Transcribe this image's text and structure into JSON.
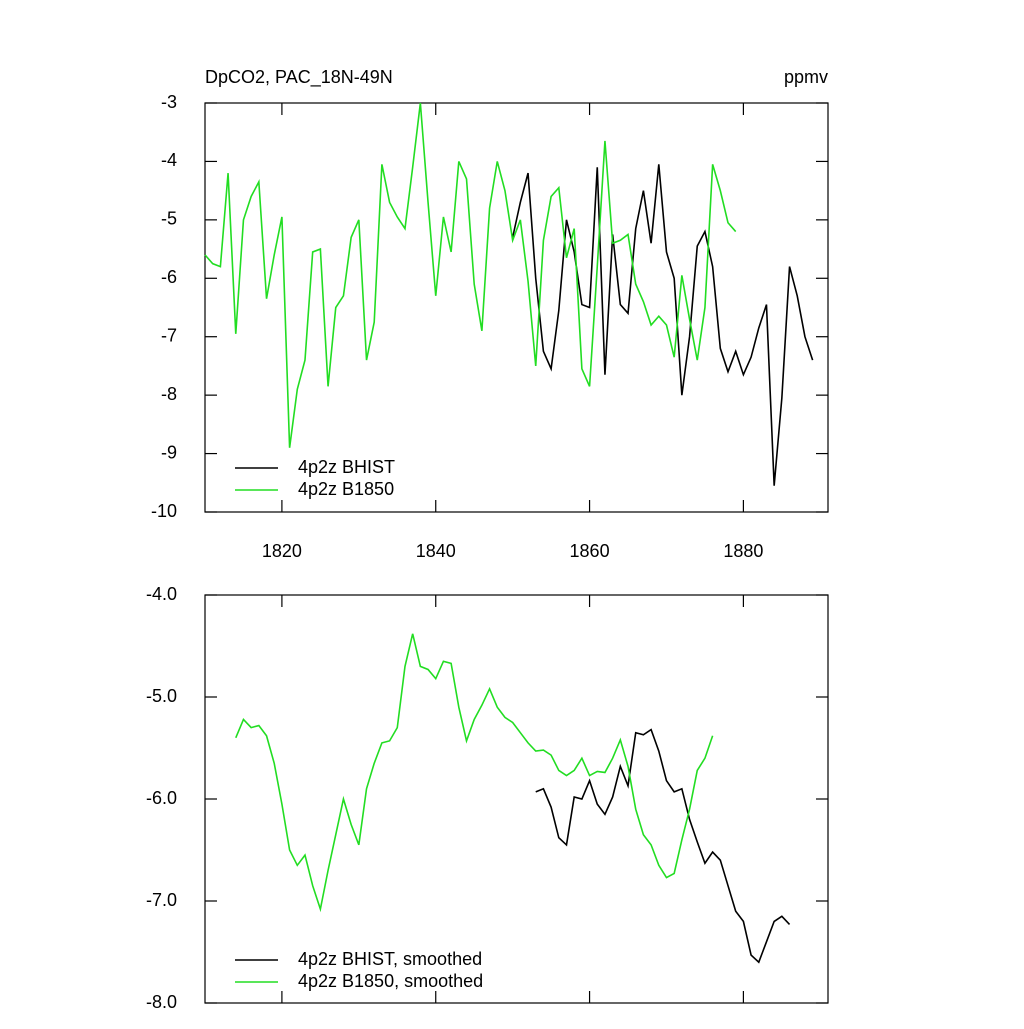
{
  "chart_data": [
    {
      "type": "line",
      "title": "DpCO2, PAC_18N-49N",
      "units": "ppmv",
      "xlim": [
        1810,
        1891
      ],
      "xticks": [
        1820,
        1840,
        1860,
        1880
      ],
      "ylim": [
        -10,
        -3
      ],
      "yticks": [
        -10,
        -9,
        -8,
        -7,
        -6,
        -5,
        -4,
        -3
      ],
      "grid": false,
      "legend": "lower left",
      "series": [
        {
          "name": "4p2z BHIST",
          "color": "#000000",
          "x": [
            1850,
            1851,
            1852,
            1853,
            1854,
            1855,
            1856,
            1857,
            1858,
            1859,
            1860,
            1861,
            1862,
            1863,
            1864,
            1865,
            1866,
            1867,
            1868,
            1869,
            1870,
            1871,
            1872,
            1873,
            1874,
            1875,
            1876,
            1877,
            1878,
            1879,
            1880,
            1881,
            1882,
            1883,
            1884,
            1885,
            1886,
            1887,
            1888,
            1889
          ],
          "values": [
            -5.3,
            -4.7,
            -4.2,
            -6.0,
            -7.25,
            -7.55,
            -6.55,
            -5.0,
            -5.55,
            -6.45,
            -6.5,
            -4.1,
            -7.65,
            -5.25,
            -6.45,
            -6.6,
            -5.15,
            -4.5,
            -5.4,
            -4.05,
            -5.55,
            -6.0,
            -8.0,
            -7.0,
            -5.45,
            -5.2,
            -5.8,
            -7.2,
            -7.6,
            -7.25,
            -7.65,
            -7.35,
            -6.85,
            -6.45,
            -9.55,
            -8.05,
            -5.8,
            -6.3,
            -7.0,
            -7.4
          ]
        },
        {
          "name": "4p2z B1850",
          "color": "#22dd22",
          "x": [
            1810,
            1811,
            1812,
            1813,
            1814,
            1815,
            1816,
            1817,
            1818,
            1819,
            1820,
            1821,
            1822,
            1823,
            1824,
            1825,
            1826,
            1827,
            1828,
            1829,
            1830,
            1831,
            1832,
            1833,
            1834,
            1835,
            1836,
            1837,
            1838,
            1839,
            1840,
            1841,
            1842,
            1843,
            1844,
            1845,
            1846,
            1847,
            1848,
            1849,
            1850,
            1851,
            1852,
            1853,
            1854,
            1855,
            1856,
            1857,
            1858,
            1859,
            1860,
            1861,
            1862,
            1863,
            1864,
            1865,
            1866,
            1867,
            1868,
            1869,
            1870,
            1871,
            1872,
            1873,
            1874,
            1875,
            1876,
            1877,
            1878,
            1879
          ],
          "values": [
            -5.6,
            -5.75,
            -5.8,
            -4.2,
            -6.95,
            -5.0,
            -4.6,
            -4.35,
            -6.35,
            -5.6,
            -4.95,
            -8.9,
            -7.9,
            -7.4,
            -5.55,
            -5.5,
            -7.85,
            -6.5,
            -6.3,
            -5.3,
            -5.0,
            -7.4,
            -6.75,
            -4.05,
            -4.7,
            -4.95,
            -5.15,
            -4.1,
            -3.0,
            -4.7,
            -6.3,
            -4.95,
            -5.55,
            -4.0,
            -4.3,
            -6.1,
            -6.9,
            -4.8,
            -4.0,
            -4.5,
            -5.35,
            -5.0,
            -6.05,
            -7.5,
            -5.35,
            -4.6,
            -4.45,
            -5.65,
            -5.15,
            -7.55,
            -7.85,
            -5.8,
            -3.65,
            -5.4,
            -5.35,
            -5.25,
            -6.1,
            -6.4,
            -6.8,
            -6.65,
            -6.8,
            -7.35,
            -5.95,
            -6.7,
            -7.4,
            -6.5,
            -4.05,
            -4.5,
            -5.05,
            -5.2
          ]
        }
      ]
    },
    {
      "type": "line",
      "xlim": [
        1810,
        1891
      ],
      "xticks": [
        1820,
        1840,
        1860,
        1880
      ],
      "ylim": [
        -8,
        -4
      ],
      "yticks": [
        {
          "value": -8,
          "label": "-8.0"
        },
        {
          "value": -7,
          "label": "-7.0"
        },
        {
          "value": -6,
          "label": "-6.0"
        },
        {
          "value": -5,
          "label": "-5.0"
        },
        {
          "value": -4,
          "label": "-4.0"
        }
      ],
      "grid": false,
      "legend": "lower left",
      "series": [
        {
          "name": "4p2z BHIST, smoothed",
          "color": "#000000",
          "x": [
            1853,
            1854,
            1855,
            1856,
            1857,
            1858,
            1859,
            1860,
            1861,
            1862,
            1863,
            1864,
            1865,
            1866,
            1867,
            1868,
            1869,
            1870,
            1871,
            1872,
            1873,
            1874,
            1875,
            1876,
            1877,
            1878,
            1879,
            1880,
            1881,
            1882,
            1883,
            1884,
            1885,
            1886
          ],
          "values": [
            -5.93,
            -5.9,
            -6.08,
            -6.38,
            -6.45,
            -5.98,
            -6.0,
            -5.82,
            -6.05,
            -6.15,
            -5.98,
            -5.68,
            -5.87,
            -5.35,
            -5.37,
            -5.32,
            -5.53,
            -5.82,
            -5.93,
            -5.9,
            -6.2,
            -6.42,
            -6.63,
            -6.52,
            -6.6,
            -6.85,
            -7.1,
            -7.2,
            -7.53,
            -7.6,
            -7.4,
            -7.2,
            -7.15,
            -7.23
          ]
        },
        {
          "name": "4p2z B1850, smoothed",
          "color": "#22dd22",
          "x": [
            1814,
            1815,
            1816,
            1817,
            1818,
            1819,
            1820,
            1821,
            1822,
            1823,
            1824,
            1825,
            1826,
            1827,
            1828,
            1829,
            1830,
            1831,
            1832,
            1833,
            1834,
            1835,
            1836,
            1837,
            1838,
            1839,
            1840,
            1841,
            1842,
            1843,
            1844,
            1845,
            1846,
            1847,
            1848,
            1849,
            1850,
            1851,
            1852,
            1853,
            1854,
            1855,
            1856,
            1857,
            1858,
            1859,
            1860,
            1861,
            1862,
            1863,
            1864,
            1865,
            1866,
            1867,
            1868,
            1869,
            1870,
            1871,
            1872,
            1873,
            1874,
            1875,
            1876
          ],
          "values": [
            -5.4,
            -5.22,
            -5.3,
            -5.28,
            -5.38,
            -5.65,
            -6.05,
            -6.5,
            -6.65,
            -6.55,
            -6.85,
            -7.08,
            -6.7,
            -6.35,
            -6.0,
            -6.25,
            -6.45,
            -5.9,
            -5.65,
            -5.45,
            -5.43,
            -5.3,
            -4.7,
            -4.38,
            -4.7,
            -4.73,
            -4.82,
            -4.65,
            -4.67,
            -5.1,
            -5.43,
            -5.22,
            -5.08,
            -4.92,
            -5.1,
            -5.2,
            -5.25,
            -5.35,
            -5.45,
            -5.53,
            -5.52,
            -5.57,
            -5.72,
            -5.77,
            -5.72,
            -5.6,
            -5.77,
            -5.73,
            -5.74,
            -5.6,
            -5.42,
            -5.68,
            -6.1,
            -6.35,
            -6.45,
            -6.65,
            -6.77,
            -6.73,
            -6.4,
            -6.1,
            -5.72,
            -5.6,
            -5.38
          ]
        }
      ]
    }
  ]
}
